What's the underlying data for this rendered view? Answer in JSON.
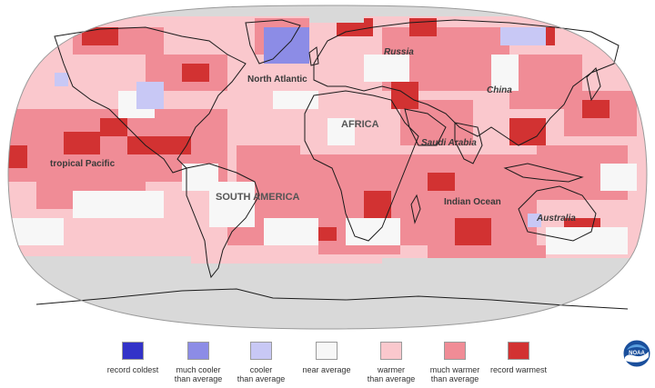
{
  "map": {
    "ocean_labels": [
      "North Atlantic",
      "tropical Pacific",
      "Indian Ocean"
    ],
    "land_labels": [
      "Russia",
      "China",
      "AFRICA",
      "Saudi Arabia",
      "SOUTH AMERICA",
      "Australia"
    ],
    "colors": {
      "record_coldest": "#3232c8",
      "much_cooler": "#8c8ce6",
      "cooler": "#c8c8f5",
      "near_average": "#f7f7f7",
      "warmer": "#fac8cd",
      "much_warmer": "#f08c96",
      "record_warmest": "#d23232",
      "no_data": "#d9d9d9"
    }
  },
  "legend": [
    {
      "line1": "record coldest",
      "line2": "",
      "color": "#3232c8"
    },
    {
      "line1": "much cooler",
      "line2": "than average",
      "color": "#8c8ce6"
    },
    {
      "line1": "cooler",
      "line2": "than average",
      "color": "#c8c8f5"
    },
    {
      "line1": "near average",
      "line2": "",
      "color": "#f7f7f7"
    },
    {
      "line1": "warmer",
      "line2": "than average",
      "color": "#fac8cd"
    },
    {
      "line1": "much warmer",
      "line2": "than average",
      "color": "#f08c96"
    },
    {
      "line1": "record warmest",
      "line2": "",
      "color": "#d23232"
    }
  ],
  "logo": {
    "text": "NOAA"
  }
}
